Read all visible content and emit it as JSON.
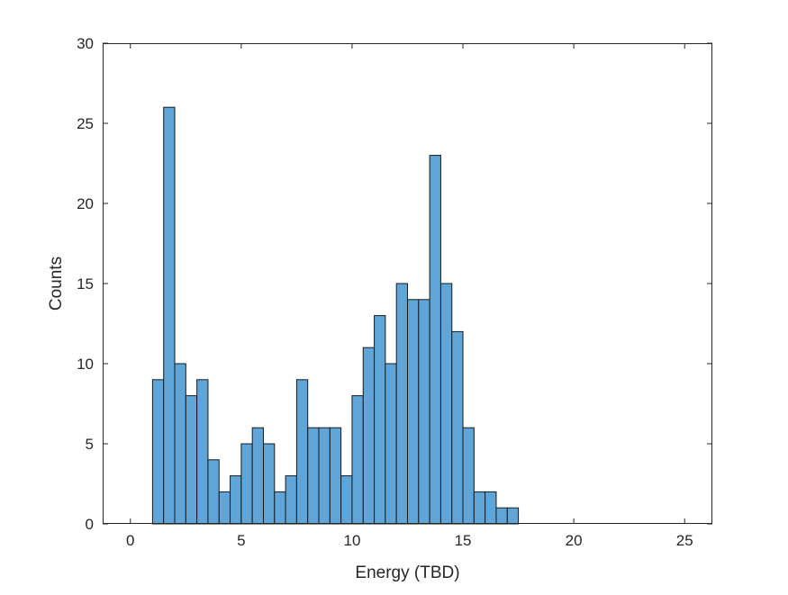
{
  "chart_data": {
    "type": "bar",
    "subtype": "histogram",
    "title": "",
    "xlabel": "Energy (TBD)",
    "ylabel": "Counts",
    "xlim": [
      -1.25,
      26.25
    ],
    "ylim": [
      0,
      30
    ],
    "xticks": [
      0,
      5,
      10,
      15,
      20,
      25
    ],
    "yticks": [
      0,
      5,
      10,
      15,
      20,
      25,
      30
    ],
    "bin_width": 0.5,
    "bin_edges_start": 0,
    "values": [
      0,
      0,
      9,
      26,
      10,
      8,
      9,
      4,
      2,
      3,
      5,
      6,
      5,
      2,
      3,
      9,
      6,
      6,
      6,
      3,
      8,
      11,
      13,
      10,
      15,
      14,
      14,
      23,
      15,
      12,
      6,
      2,
      2,
      1,
      1,
      0,
      0,
      0,
      0,
      0,
      0,
      0,
      0,
      0,
      0,
      0,
      0,
      0,
      0,
      0
    ],
    "bar_color": "#5fa5d7",
    "edge_color": "#1a1a1a",
    "grid": false,
    "legend": "none"
  }
}
